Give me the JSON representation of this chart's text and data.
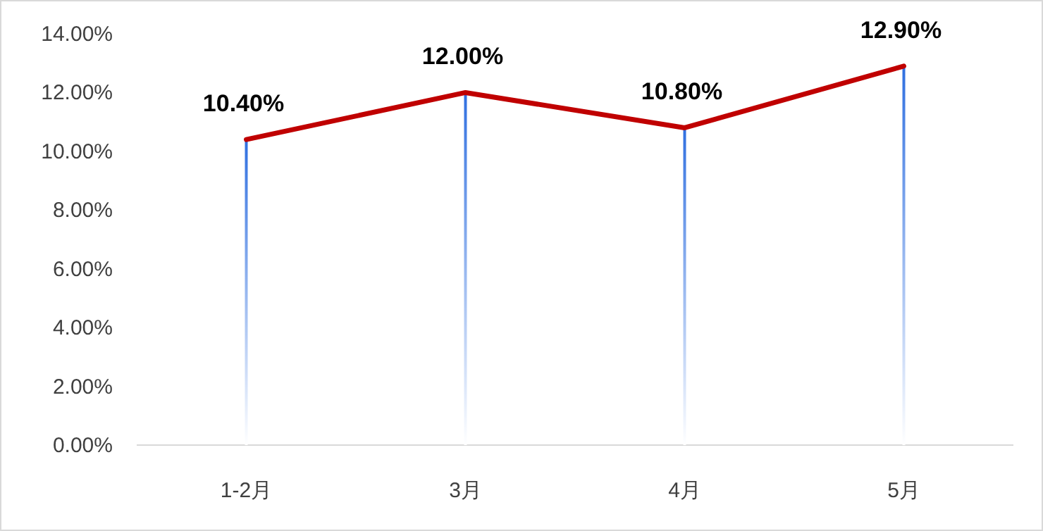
{
  "chart_data": {
    "type": "bar",
    "categories": [
      "1-2月",
      "3月",
      "4月",
      "5月"
    ],
    "series": [
      {
        "color": "#2f6fe0",
        "values": [
          10.4,
          12.0,
          10.8,
          12.9
        ]
      },
      {
        "type": "line",
        "color": "#c00000",
        "values": [
          10.4,
          12.0,
          10.8,
          12.9
        ],
        "value_labels": [
          "10.40%",
          "12.00%",
          "10.80%",
          "12.90%"
        ]
      }
    ],
    "ylim": [
      0,
      14
    ],
    "yticks": [
      {
        "value": 0,
        "label": "0.00%"
      },
      {
        "value": 2,
        "label": "2.00%"
      },
      {
        "value": 4,
        "label": "4.00%"
      },
      {
        "value": 6,
        "label": "6.00%"
      },
      {
        "value": 8,
        "label": "8.00%"
      },
      {
        "value": 10,
        "label": "10.00%"
      },
      {
        "value": 12,
        "label": "12.00%"
      },
      {
        "value": 14,
        "label": "14.00%"
      }
    ]
  }
}
